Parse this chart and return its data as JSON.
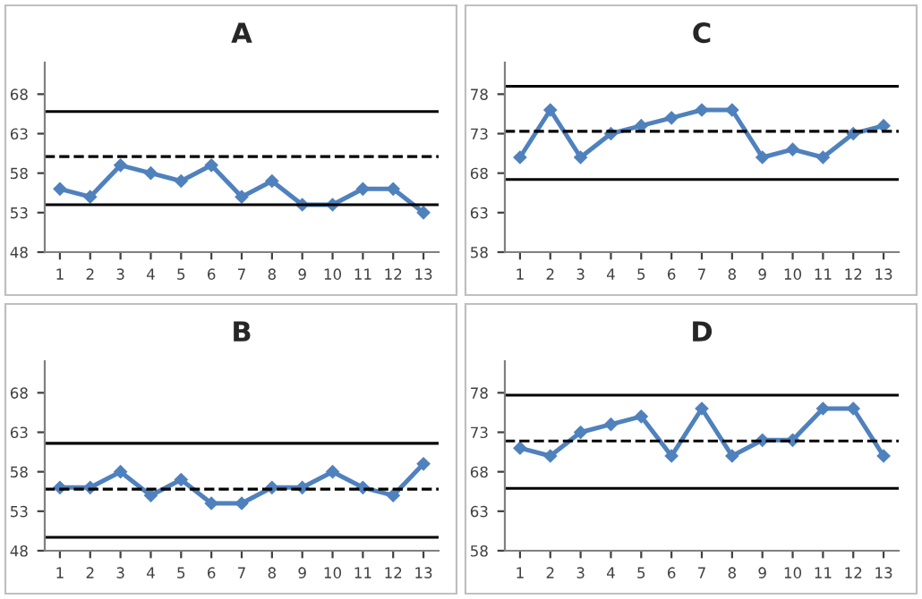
{
  "chart_data": [
    {
      "type": "line",
      "title": "A",
      "categories": [
        "1",
        "2",
        "3",
        "4",
        "5",
        "6",
        "7",
        "8",
        "9",
        "10",
        "11",
        "12",
        "13"
      ],
      "series": [
        {
          "color": "#4f81bd",
          "values": [
            56,
            55,
            59,
            58,
            57,
            59,
            55,
            57,
            54,
            54,
            56,
            56,
            53
          ]
        }
      ],
      "ylim": [
        48,
        72
      ],
      "yticks": [
        48,
        53,
        58,
        63,
        68
      ],
      "marker": "diamond",
      "line_style": "solid",
      "ref_lines": [
        {
          "axis": "y",
          "value": 65.8,
          "color": "#000000",
          "line_style": "solid"
        },
        {
          "axis": "y",
          "value": 60.1,
          "color": "#000000",
          "line_style": "dashed"
        },
        {
          "axis": "y",
          "value": 54,
          "color": "#000000",
          "line_style": "solid"
        }
      ]
    },
    {
      "type": "line",
      "title": "C",
      "categories": [
        "1",
        "2",
        "3",
        "4",
        "5",
        "6",
        "7",
        "8",
        "9",
        "10",
        "11",
        "12",
        "13"
      ],
      "series": [
        {
          "color": "#4f81bd",
          "values": [
            70,
            76,
            70,
            73,
            74,
            75,
            76,
            76,
            70,
            71,
            70,
            73,
            74
          ]
        }
      ],
      "ylim": [
        58,
        82
      ],
      "yticks": [
        58,
        63,
        68,
        73,
        78
      ],
      "marker": "diamond",
      "line_style": "solid",
      "ref_lines": [
        {
          "axis": "y",
          "value": 79,
          "color": "#000000",
          "line_style": "solid"
        },
        {
          "axis": "y",
          "value": 73.3,
          "color": "#000000",
          "line_style": "dashed"
        },
        {
          "axis": "y",
          "value": 67.2,
          "color": "#000000",
          "line_style": "solid"
        }
      ]
    },
    {
      "type": "line",
      "title": "B",
      "categories": [
        "1",
        "2",
        "3",
        "4",
        "5",
        "6",
        "7",
        "8",
        "9",
        "10",
        "11",
        "12",
        "13"
      ],
      "series": [
        {
          "color": "#4f81bd",
          "values": [
            56,
            56,
            58,
            55,
            57,
            54,
            54,
            56,
            56,
            58,
            56,
            55,
            59
          ]
        }
      ],
      "ylim": [
        48,
        72
      ],
      "yticks": [
        48,
        53,
        58,
        63,
        68
      ],
      "marker": "diamond",
      "line_style": "solid",
      "ref_lines": [
        {
          "axis": "y",
          "value": 61.6,
          "color": "#000000",
          "line_style": "solid"
        },
        {
          "axis": "y",
          "value": 55.8,
          "color": "#000000",
          "line_style": "dashed"
        },
        {
          "axis": "y",
          "value": 49.7,
          "color": "#000000",
          "line_style": "solid"
        }
      ]
    },
    {
      "type": "line",
      "title": "D",
      "categories": [
        "1",
        "2",
        "3",
        "4",
        "5",
        "6",
        "7",
        "8",
        "9",
        "10",
        "11",
        "12",
        "13"
      ],
      "series": [
        {
          "color": "#4f81bd",
          "values": [
            71,
            70,
            73,
            74,
            75,
            70,
            76,
            70,
            72,
            72,
            76,
            76,
            70
          ]
        }
      ],
      "ylim": [
        58,
        82
      ],
      "yticks": [
        58,
        63,
        68,
        73,
        78
      ],
      "marker": "diamond",
      "line_style": "solid",
      "ref_lines": [
        {
          "axis": "y",
          "value": 77.7,
          "color": "#000000",
          "line_style": "solid"
        },
        {
          "axis": "y",
          "value": 71.9,
          "color": "#000000",
          "line_style": "dashed"
        },
        {
          "axis": "y",
          "value": 65.9,
          "color": "#000000",
          "line_style": "solid"
        }
      ]
    }
  ]
}
